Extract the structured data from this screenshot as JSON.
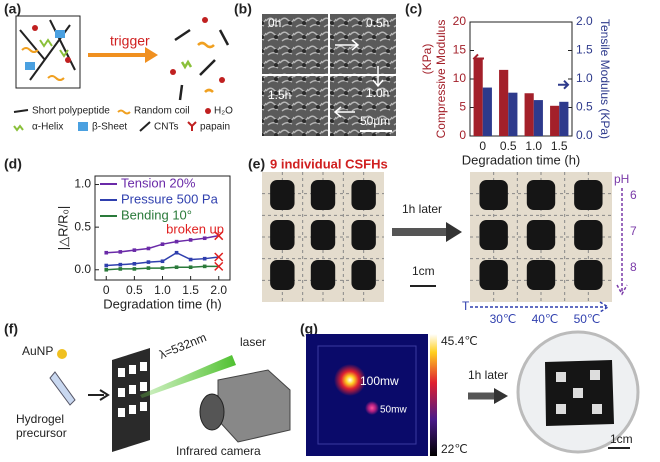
{
  "panels": {
    "a": {
      "label": "(a)",
      "trigger": "trigger",
      "legend": [
        "Short polypeptide",
        "Random coil",
        "H₂O",
        "α-Helix",
        "β-Sheet",
        "CNTs",
        "papain"
      ]
    },
    "b": {
      "label": "(b)",
      "times": [
        "0h",
        "0.5h",
        "1.5h",
        "1.0h"
      ],
      "scale_bar": "50μm"
    },
    "c": {
      "label": "(c)"
    },
    "d": {
      "label": "(d)"
    },
    "e": {
      "label": "(e)",
      "title": "9 individual CSFHs",
      "arrow": "1h later",
      "scale_bar": "1cm",
      "ph_label": "pH",
      "ph": [
        "6",
        "7",
        "8"
      ],
      "t_label": "T",
      "temps": [
        "30℃",
        "40℃",
        "50℃"
      ]
    },
    "f": {
      "label": "(f)",
      "nanoparticle": "AuNP",
      "wavelength": "λ=532nm",
      "laser": "laser",
      "precursor": [
        "Hydrogel",
        "precursor"
      ],
      "camera": "Infrared camera"
    },
    "g": {
      "label": "(g)",
      "spots": [
        "100mw",
        "50mw"
      ],
      "scale_max": "45.4℃",
      "scale_min": "22℃",
      "arrow": "1h later",
      "scale_bar": "1cm"
    }
  },
  "chart_data": [
    {
      "type": "bar",
      "categories": [
        "0",
        "0.5",
        "1.0",
        "1.5"
      ],
      "x_label": "Degradation time (h)",
      "y_label": [
        "Compressive Modulus",
        "(KPa)"
      ],
      "y2_label": "Tensile Modulus (KPa)",
      "series": [
        {
          "color": "#a3202a",
          "values": [
            13.6,
            11.6,
            7.5,
            5.3
          ]
        },
        {
          "color": "#2e3a8c",
          "axis": "y2",
          "values": [
            0.85,
            0.76,
            0.63,
            0.6
          ]
        }
      ],
      "ylim": [
        0,
        20
      ],
      "yticks": [
        0,
        5,
        10,
        15,
        20
      ],
      "y2lim": [
        0,
        2
      ],
      "y2ticks": [
        {
          "value": 0,
          "label": "0.0"
        },
        0.5,
        {
          "value": 1,
          "label": "1.0"
        },
        1.5,
        {
          "value": 2,
          "label": "2.0"
        }
      ]
    },
    {
      "type": "line",
      "x_label": "Degradation time (h)",
      "y_label": "|△R/R₀|",
      "annotation": "broken up",
      "broken_color": "#e02020",
      "x": [
        0,
        0.25,
        0.5,
        0.75,
        1.0,
        1.25,
        1.5,
        1.75,
        2.0
      ],
      "series": [
        {
          "name": "Tension 20%",
          "color": "#6a2aa8",
          "values": [
            0.2,
            0.21,
            0.23,
            0.25,
            0.3,
            0.33,
            0.35,
            0.37,
            0.4
          ]
        },
        {
          "name": "Pressure 500 Pa",
          "color": "#2f3fae",
          "values": [
            0.05,
            0.06,
            0.07,
            0.09,
            0.1,
            0.2,
            0.12,
            0.13,
            0.15
          ]
        },
        {
          "name": "Bending 10°",
          "color": "#2a7a3a",
          "values": [
            0.0,
            0.01,
            0.01,
            0.02,
            0.02,
            0.03,
            0.03,
            0.04,
            0.04
          ]
        }
      ],
      "xlim": [
        -0.2,
        2.2
      ],
      "xticks": [
        0,
        0.5,
        {
          "value": 1,
          "label": "1.0"
        },
        1.5,
        {
          "value": 2,
          "label": "2.0"
        }
      ],
      "ylim": [
        -0.12,
        1.1
      ],
      "yticks": [
        {
          "value": 0,
          "label": "0.0"
        },
        0.5,
        {
          "value": 1,
          "label": "1.0"
        }
      ]
    }
  ]
}
